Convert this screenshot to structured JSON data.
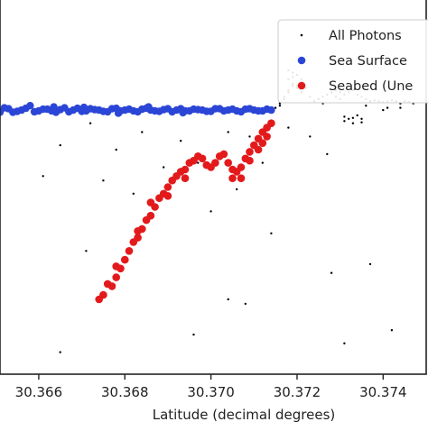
{
  "chart_data": {
    "type": "scatter",
    "title": "",
    "xlabel": "Latitude (decimal degrees)",
    "ylabel": "",
    "xlim": [
      30.3651,
      30.375
    ],
    "ylim": [
      -7.0,
      1.5
    ],
    "x_ticks": [
      {
        "value": 30.366,
        "label": "30.366"
      },
      {
        "value": 30.368,
        "label": "30.368"
      },
      {
        "value": 30.37,
        "label": "30.370"
      },
      {
        "value": 30.372,
        "label": "30.372"
      },
      {
        "value": 30.374,
        "label": "30.374"
      }
    ],
    "grid": false,
    "legend": {
      "position": "top-right",
      "entries": [
        {
          "label": "All Photons",
          "color": "#000000",
          "marker": "small-dot"
        },
        {
          "label": "Sea Surface",
          "color": "#2b46d6",
          "marker": "circle"
        },
        {
          "label": "Seabed (Une",
          "color": "#e31a1c",
          "marker": "circle"
        }
      ]
    },
    "series": [
      {
        "name": "All Photons",
        "color": "#000000",
        "points": [
          [
            30.3715,
            -0.95
          ],
          [
            30.3716,
            -0.85
          ],
          [
            30.3717,
            -0.7
          ],
          [
            30.3718,
            -0.6
          ],
          [
            30.3719,
            -0.45
          ],
          [
            30.372,
            -0.5
          ],
          [
            30.3716,
            -0.9
          ],
          [
            30.3717,
            -0.75
          ],
          [
            30.3718,
            -0.55
          ],
          [
            30.3719,
            -0.4
          ],
          [
            30.372,
            -0.45
          ],
          [
            30.3721,
            -0.6
          ],
          [
            30.3719,
            -0.25
          ],
          [
            30.372,
            -0.2
          ],
          [
            30.3721,
            -0.3
          ],
          [
            30.3722,
            -0.5
          ],
          [
            30.3723,
            -0.7
          ],
          [
            30.3724,
            -0.8
          ],
          [
            30.3725,
            -0.75
          ],
          [
            30.3726,
            -0.7
          ],
          [
            30.3727,
            -0.65
          ],
          [
            30.3728,
            -0.6
          ],
          [
            30.3729,
            -0.55
          ],
          [
            30.373,
            -0.6
          ],
          [
            30.3731,
            -0.65
          ],
          [
            30.3732,
            -0.6
          ],
          [
            30.3733,
            -0.55
          ],
          [
            30.3734,
            -0.65
          ],
          [
            30.3735,
            -0.7
          ],
          [
            30.3736,
            -0.75
          ],
          [
            30.3737,
            -0.8
          ],
          [
            30.3738,
            -0.78
          ],
          [
            30.3739,
            -0.8
          ],
          [
            30.374,
            -0.82
          ],
          [
            30.3741,
            -0.8
          ],
          [
            30.3742,
            -0.78
          ],
          [
            30.3743,
            -0.8
          ],
          [
            30.3744,
            -0.85
          ],
          [
            30.3745,
            -0.8
          ],
          [
            30.3746,
            -0.82
          ],
          [
            30.3747,
            -0.85
          ],
          [
            30.3731,
            -1.15
          ],
          [
            30.3732,
            -1.2
          ],
          [
            30.3733,
            -1.18
          ],
          [
            30.3734,
            -1.12
          ],
          [
            30.3735,
            -1.2
          ],
          [
            30.3731,
            -1.25
          ],
          [
            30.3733,
            -1.3
          ],
          [
            30.3735,
            -1.28
          ],
          [
            30.374,
            -1.0
          ],
          [
            30.3741,
            -0.95
          ],
          [
            30.3744,
            -0.95
          ],
          [
            30.3718,
            -0.3
          ],
          [
            30.3718,
            -0.1
          ],
          [
            30.3719,
            -0.15
          ],
          [
            30.3729,
            -0.7
          ],
          [
            30.373,
            -0.75
          ],
          [
            30.3726,
            -0.85
          ],
          [
            30.3736,
            -0.9
          ],
          [
            30.3665,
            -1.8
          ],
          [
            30.3672,
            -1.3
          ],
          [
            30.3678,
            -1.9
          ],
          [
            30.3684,
            -1.5
          ],
          [
            30.3689,
            -2.3
          ],
          [
            30.3693,
            -1.7
          ],
          [
            30.3697,
            -2.2
          ],
          [
            30.3704,
            -1.5
          ],
          [
            30.3709,
            -1.6
          ],
          [
            30.3706,
            -2.8
          ],
          [
            30.3711,
            -1.9
          ],
          [
            30.3712,
            -2.2
          ],
          [
            30.366,
            -1.0
          ],
          [
            30.3661,
            -2.5
          ],
          [
            30.3675,
            -2.6
          ],
          [
            30.3682,
            -2.9
          ],
          [
            30.37,
            -3.3
          ],
          [
            30.3704,
            -5.3
          ],
          [
            30.3708,
            -5.4
          ],
          [
            30.3718,
            -1.4
          ],
          [
            30.3723,
            -1.6
          ],
          [
            30.3737,
            -4.5
          ],
          [
            30.3728,
            -4.7
          ],
          [
            30.3742,
            -6.0
          ],
          [
            30.3731,
            -6.3
          ],
          [
            30.3665,
            -6.5
          ],
          [
            30.3727,
            -2.0
          ],
          [
            30.3714,
            -3.8
          ],
          [
            30.3671,
            -4.2
          ],
          [
            30.3696,
            -6.1
          ]
        ]
      },
      {
        "name": "Sea Surface",
        "color": "#2b46d6",
        "points": [
          [
            30.365,
            -1.0
          ],
          [
            30.3652,
            -0.95
          ],
          [
            30.3654,
            -1.05
          ],
          [
            30.3656,
            -1.0
          ],
          [
            30.3658,
            -0.9
          ],
          [
            30.366,
            -1.02
          ],
          [
            30.3662,
            -0.98
          ],
          [
            30.3664,
            -1.05
          ],
          [
            30.3666,
            -0.95
          ],
          [
            30.3668,
            -1.0
          ],
          [
            30.367,
            -1.03
          ],
          [
            30.3672,
            -0.97
          ],
          [
            30.3674,
            -1.0
          ],
          [
            30.3676,
            -1.04
          ],
          [
            30.3678,
            -0.96
          ],
          [
            30.368,
            -1.0
          ],
          [
            30.3682,
            -1.02
          ],
          [
            30.3684,
            -0.98
          ],
          [
            30.3686,
            -1.0
          ],
          [
            30.3688,
            -1.03
          ],
          [
            30.369,
            -0.97
          ],
          [
            30.3692,
            -1.0
          ],
          [
            30.3694,
            -1.02
          ],
          [
            30.3696,
            -0.98
          ],
          [
            30.3698,
            -1.0
          ],
          [
            30.37,
            -1.03
          ],
          [
            30.3702,
            -0.97
          ],
          [
            30.3704,
            -1.0
          ],
          [
            30.3706,
            -1.02
          ],
          [
            30.3708,
            -0.98
          ],
          [
            30.371,
            -1.0
          ],
          [
            30.3712,
            -1.02
          ],
          [
            30.3713,
            -0.98
          ],
          [
            30.3714,
            -1.0
          ],
          [
            30.3651,
            -1.05
          ],
          [
            30.3653,
            -0.97
          ],
          [
            30.3655,
            -1.03
          ],
          [
            30.3657,
            -0.96
          ],
          [
            30.3659,
            -1.04
          ],
          [
            30.3661,
            -0.98
          ],
          [
            30.3663,
            -1.02
          ],
          [
            30.3665,
            -0.99
          ],
          [
            30.3667,
            -1.04
          ],
          [
            30.3669,
            -0.96
          ],
          [
            30.3671,
            -1.02
          ],
          [
            30.3673,
            -0.99
          ],
          [
            30.3675,
            -1.03
          ],
          [
            30.3677,
            -0.97
          ],
          [
            30.3679,
            -1.02
          ],
          [
            30.3681,
            -0.98
          ],
          [
            30.3683,
            -1.04
          ],
          [
            30.3685,
            -0.96
          ],
          [
            30.3687,
            -1.02
          ],
          [
            30.3689,
            -0.99
          ],
          [
            30.3691,
            -1.04
          ],
          [
            30.3693,
            -0.97
          ],
          [
            30.3695,
            -1.02
          ],
          [
            30.3697,
            -0.99
          ],
          [
            30.3699,
            -1.03
          ],
          [
            30.3701,
            -0.97
          ],
          [
            30.3703,
            -1.02
          ],
          [
            30.3705,
            -0.98
          ],
          [
            30.3707,
            -1.04
          ],
          [
            30.3709,
            -0.97
          ],
          [
            30.3711,
            -1.02
          ],
          [
            30.36635,
            -0.93
          ],
          [
            30.36705,
            -0.94
          ],
          [
            30.36785,
            -1.07
          ],
          [
            30.36855,
            -0.93
          ],
          [
            30.36935,
            -1.06
          ]
        ]
      },
      {
        "name": "Seabed (Une",
        "color": "#e31a1c",
        "points": [
          [
            30.3674,
            -5.3
          ],
          [
            30.3675,
            -5.2
          ],
          [
            30.3677,
            -5.0
          ],
          [
            30.3678,
            -4.8
          ],
          [
            30.3679,
            -4.6
          ],
          [
            30.368,
            -4.4
          ],
          [
            30.3681,
            -4.2
          ],
          [
            30.3682,
            -4.0
          ],
          [
            30.3683,
            -3.9
          ],
          [
            30.3684,
            -3.7
          ],
          [
            30.3685,
            -3.5
          ],
          [
            30.3686,
            -3.4
          ],
          [
            30.3687,
            -3.2
          ],
          [
            30.3688,
            -3.0
          ],
          [
            30.3689,
            -2.9
          ],
          [
            30.369,
            -2.75
          ],
          [
            30.3691,
            -2.6
          ],
          [
            30.3692,
            -2.5
          ],
          [
            30.3693,
            -2.4
          ],
          [
            30.3694,
            -2.35
          ],
          [
            30.3695,
            -2.2
          ],
          [
            30.3696,
            -2.15
          ],
          [
            30.3697,
            -2.05
          ],
          [
            30.3698,
            -2.1
          ],
          [
            30.3699,
            -2.25
          ],
          [
            30.37,
            -2.3
          ],
          [
            30.3701,
            -2.2
          ],
          [
            30.3702,
            -2.05
          ],
          [
            30.3703,
            -2.0
          ],
          [
            30.3704,
            -2.2
          ],
          [
            30.3705,
            -2.35
          ],
          [
            30.3706,
            -2.4
          ],
          [
            30.3707,
            -2.3
          ],
          [
            30.3708,
            -2.1
          ],
          [
            30.3709,
            -1.95
          ],
          [
            30.371,
            -1.8
          ],
          [
            30.3711,
            -1.65
          ],
          [
            30.3712,
            -1.5
          ],
          [
            30.3713,
            -1.4
          ],
          [
            30.3714,
            -1.3
          ],
          [
            30.3676,
            -4.95
          ],
          [
            30.3678,
            -4.55
          ],
          [
            30.3683,
            -3.75
          ],
          [
            30.3686,
            -3.1
          ],
          [
            30.369,
            -2.95
          ],
          [
            30.3694,
            -2.55
          ],
          [
            30.3705,
            -2.55
          ],
          [
            30.3709,
            -2.15
          ],
          [
            30.3711,
            -1.9
          ],
          [
            30.3713,
            -1.6
          ],
          [
            30.3712,
            -1.75
          ],
          [
            30.3707,
            -2.55
          ]
        ]
      }
    ]
  }
}
